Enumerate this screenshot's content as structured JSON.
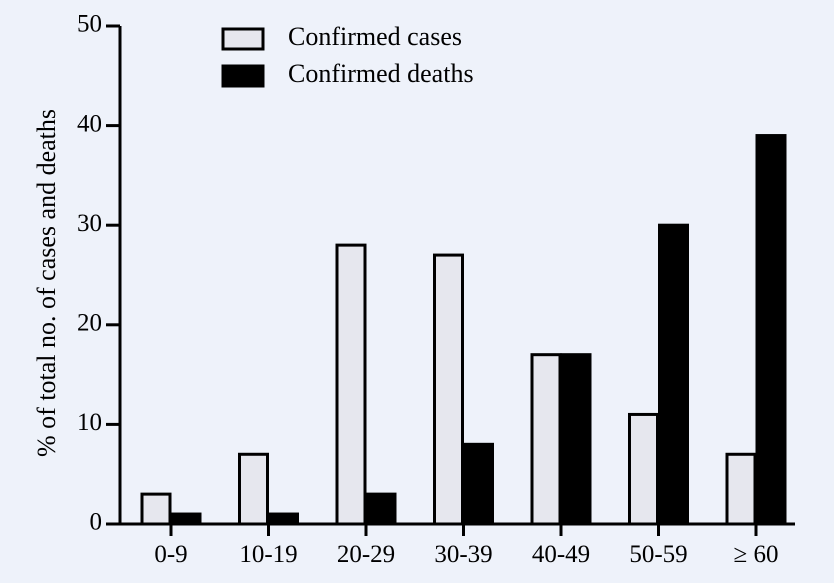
{
  "chart_data": {
    "type": "bar",
    "title": "",
    "xlabel": "",
    "ylabel": "% of total no. of cases and deaths",
    "ylim": [
      0,
      50
    ],
    "yticks": [
      0,
      10,
      20,
      30,
      40,
      50
    ],
    "grid": false,
    "legend_position": "top-center",
    "categories": [
      "0-9",
      "10-19",
      "20-29",
      "30-39",
      "40-49",
      "50-59",
      "≥ 60"
    ],
    "series": [
      {
        "name": "Confirmed cases",
        "color": "#e6e7ee",
        "values": [
          3,
          7,
          28,
          27,
          17,
          11,
          7
        ]
      },
      {
        "name": "Confirmed deaths",
        "color": "#000000",
        "values": [
          1,
          1,
          3,
          8,
          17,
          30,
          39
        ]
      }
    ]
  }
}
